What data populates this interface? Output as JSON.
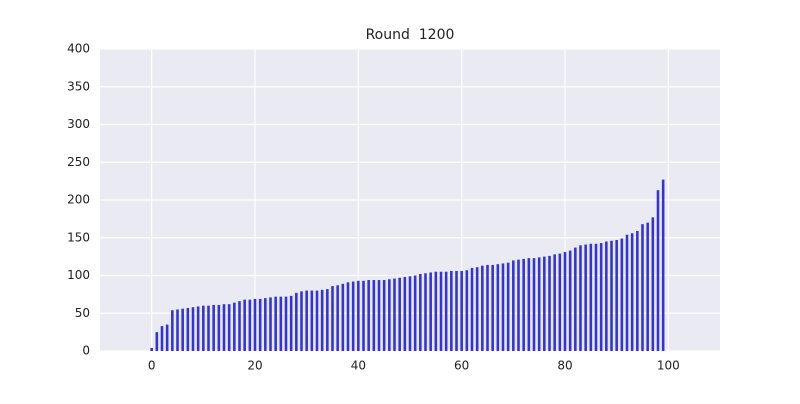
{
  "chart_data": {
    "type": "bar",
    "title": "Round  1200",
    "x": [
      0,
      1,
      2,
      3,
      4,
      5,
      6,
      7,
      8,
      9,
      10,
      11,
      12,
      13,
      14,
      15,
      16,
      17,
      18,
      19,
      20,
      21,
      22,
      23,
      24,
      25,
      26,
      27,
      28,
      29,
      30,
      31,
      32,
      33,
      34,
      35,
      36,
      37,
      38,
      39,
      40,
      41,
      42,
      43,
      44,
      45,
      46,
      47,
      48,
      49,
      50,
      51,
      52,
      53,
      54,
      55,
      56,
      57,
      58,
      59,
      60,
      61,
      62,
      63,
      64,
      65,
      66,
      67,
      68,
      69,
      70,
      71,
      72,
      73,
      74,
      75,
      76,
      77,
      78,
      79,
      80,
      81,
      82,
      83,
      84,
      85,
      86,
      87,
      88,
      89,
      90,
      91,
      92,
      93,
      94,
      95,
      96,
      97,
      98,
      99
    ],
    "values": [
      4,
      25,
      33,
      35,
      54,
      55,
      56,
      57,
      58,
      59,
      60,
      60,
      61,
      61,
      62,
      62,
      64,
      66,
      68,
      68,
      69,
      69,
      70,
      71,
      72,
      72,
      72,
      73,
      77,
      79,
      80,
      80,
      80,
      81,
      82,
      86,
      87,
      89,
      91,
      92,
      93,
      93,
      94,
      94,
      94,
      94,
      95,
      96,
      97,
      98,
      99,
      100,
      102,
      103,
      104,
      105,
      105,
      105,
      106,
      106,
      106,
      107,
      110,
      111,
      113,
      114,
      114,
      115,
      116,
      117,
      120,
      121,
      122,
      123,
      123,
      124,
      125,
      126,
      128,
      129,
      131,
      133,
      137,
      140,
      141,
      142,
      142,
      143,
      145,
      146,
      147,
      149,
      154,
      156,
      159,
      168,
      170,
      177,
      213,
      227
    ],
    "color": "#3333dd",
    "xlim": [
      -10,
      110
    ],
    "xticks": [
      0,
      20,
      40,
      60,
      80,
      100
    ],
    "ylim": [
      0,
      400
    ],
    "yticks": [
      0,
      50,
      100,
      150,
      200,
      250,
      300,
      350,
      400
    ],
    "grid": true
  }
}
